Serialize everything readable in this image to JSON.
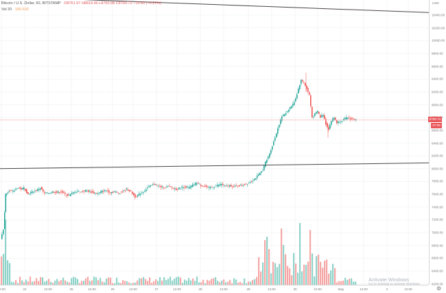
{
  "header": {
    "symbol": "Bitcoin / U.S. Dollar, 60, BITSTAMP",
    "ohlc": "O8761.97 H8819.90 L8750.98 C8760.72 −15.60 (−0.21%)",
    "volume_label": "Vol 20",
    "volume_value": "180.530"
  },
  "price_axis": {
    "currency": "USD",
    "last_price": "8760.72",
    "countdown": "27:08"
  },
  "watermark": {
    "line1": "Activate Windows",
    "line2": "Go to Settings to activate Windows."
  },
  "colors": {
    "up": "#26a69a",
    "down": "#ef5350",
    "up_volume": "#8fd3c9",
    "down_volume": "#f4a7a6",
    "trendline": "#444444",
    "grid": "#eef0f2",
    "last_price_line": "#f5b7b7"
  },
  "chart_data": {
    "type": "candlestick",
    "title": "Bitcoin / U.S. Dollar, 60, BITSTAMP",
    "xlabel": "",
    "ylabel": "USD",
    "ylim": [
      6150,
      10650
    ],
    "y_ticks": [
      10400,
      10200,
      10000,
      9800,
      9600,
      9400,
      9200,
      9000,
      8800,
      8600,
      8400,
      8200,
      8000,
      7800,
      7600,
      7400,
      7200,
      7000,
      6800,
      6600,
      6400,
      6200
    ],
    "x_ticks": [
      {
        "label": "12:00",
        "x": 2
      },
      {
        "label": "24",
        "x": 36
      },
      {
        "label": "12:00",
        "x": 70
      },
      {
        "label": "25",
        "x": 104
      },
      {
        "label": "12:00",
        "x": 134
      },
      {
        "label": "26",
        "x": 164
      },
      {
        "label": "12:00",
        "x": 194
      },
      {
        "label": "27",
        "x": 228
      },
      {
        "label": "12:00",
        "x": 258
      },
      {
        "label": "28",
        "x": 292
      },
      {
        "label": "12:00",
        "x": 326
      },
      {
        "label": "29",
        "x": 362
      },
      {
        "label": "12:00",
        "x": 396
      },
      {
        "label": "30",
        "x": 430
      },
      {
        "label": "12:00",
        "x": 463
      },
      {
        "label": "May",
        "x": 497
      },
      {
        "label": "12:00",
        "x": 530
      },
      {
        "label": "2",
        "x": 564
      },
      {
        "label": "12:00",
        "x": 595
      }
    ],
    "grid": true,
    "last_price": 8760.72,
    "trendlines": [
      {
        "from": [
          0,
          8000
        ],
        "to": [
          625,
          8090
        ]
      },
      {
        "from": [
          0,
          10690
        ],
        "to": [
          625,
          10440
        ]
      }
    ],
    "candles_summary": "Hourly BTC/USD candles; jump from ~6900 to ~7650 at start, ranging 7500-7750 through Apr 28, breakout Apr 29 from 7800 to ~8900, spike to ~9450 on Apr 30, then pullback and consolidation around 8700-8900 into May 1.",
    "close_path": [
      [
        2,
        6900
      ],
      [
        6,
        7050
      ],
      [
        9,
        7600
      ],
      [
        14,
        7660
      ],
      [
        20,
        7640
      ],
      [
        26,
        7700
      ],
      [
        32,
        7680
      ],
      [
        36,
        7700
      ],
      [
        42,
        7600
      ],
      [
        48,
        7640
      ],
      [
        54,
        7660
      ],
      [
        60,
        7700
      ],
      [
        66,
        7610
      ],
      [
        72,
        7620
      ],
      [
        78,
        7640
      ],
      [
        84,
        7630
      ],
      [
        90,
        7640
      ],
      [
        96,
        7600
      ],
      [
        102,
        7580
      ],
      [
        108,
        7630
      ],
      [
        114,
        7650
      ],
      [
        120,
        7640
      ],
      [
        126,
        7660
      ],
      [
        132,
        7640
      ],
      [
        138,
        7620
      ],
      [
        144,
        7610
      ],
      [
        150,
        7650
      ],
      [
        156,
        7660
      ],
      [
        162,
        7630
      ],
      [
        168,
        7640
      ],
      [
        174,
        7620
      ],
      [
        180,
        7640
      ],
      [
        186,
        7680
      ],
      [
        192,
        7640
      ],
      [
        198,
        7560
      ],
      [
        204,
        7600
      ],
      [
        210,
        7640
      ],
      [
        216,
        7700
      ],
      [
        222,
        7740
      ],
      [
        228,
        7760
      ],
      [
        234,
        7720
      ],
      [
        240,
        7700
      ],
      [
        246,
        7720
      ],
      [
        252,
        7700
      ],
      [
        258,
        7680
      ],
      [
        264,
        7700
      ],
      [
        270,
        7720
      ],
      [
        276,
        7700
      ],
      [
        282,
        7740
      ],
      [
        288,
        7780
      ],
      [
        294,
        7740
      ],
      [
        300,
        7720
      ],
      [
        306,
        7700
      ],
      [
        312,
        7720
      ],
      [
        318,
        7740
      ],
      [
        324,
        7760
      ],
      [
        330,
        7720
      ],
      [
        336,
        7740
      ],
      [
        342,
        7720
      ],
      [
        348,
        7730
      ],
      [
        354,
        7740
      ],
      [
        360,
        7760
      ],
      [
        366,
        7800
      ],
      [
        372,
        7840
      ],
      [
        378,
        7900
      ],
      [
        384,
        7980
      ],
      [
        388,
        8100
      ],
      [
        392,
        8180
      ],
      [
        396,
        8300
      ],
      [
        400,
        8420
      ],
      [
        404,
        8560
      ],
      [
        408,
        8700
      ],
      [
        412,
        8820
      ],
      [
        416,
        8850
      ],
      [
        420,
        8900
      ],
      [
        424,
        8960
      ],
      [
        428,
        9000
      ],
      [
        432,
        9100
      ],
      [
        436,
        9250
      ],
      [
        440,
        9380
      ],
      [
        444,
        9350
      ],
      [
        448,
        9250
      ],
      [
        452,
        9150
      ],
      [
        456,
        8800
      ],
      [
        460,
        8850
      ],
      [
        464,
        8900
      ],
      [
        468,
        8800
      ],
      [
        472,
        8850
      ],
      [
        476,
        8700
      ],
      [
        480,
        8620
      ],
      [
        484,
        8750
      ],
      [
        488,
        8800
      ],
      [
        492,
        8720
      ],
      [
        496,
        8740
      ],
      [
        500,
        8760
      ],
      [
        504,
        8780
      ],
      [
        508,
        8800
      ],
      [
        512,
        8780
      ],
      [
        516,
        8770
      ],
      [
        520,
        8760
      ]
    ]
  }
}
